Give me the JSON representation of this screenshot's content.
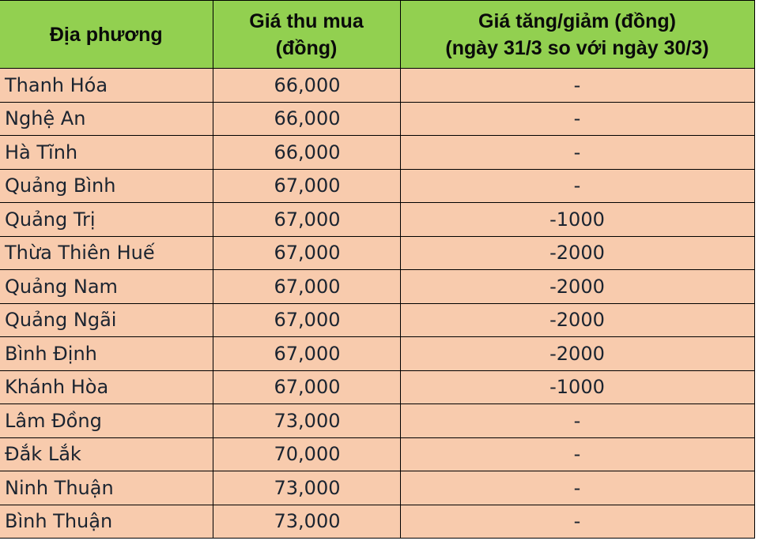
{
  "header": {
    "col1": "Địa phương",
    "col2_line1": "Giá thu mua",
    "col2_line2": "(đồng)",
    "col3_line1": "Giá tăng/giảm (đồng)",
    "col3_line2": "(ngày 31/3 so với ngày 30/3)"
  },
  "colors": {
    "header_bg": "#92d050",
    "row_bg": "#f8cbad"
  },
  "rows": [
    {
      "name": "Thanh Hóa",
      "price": "66,000",
      "change": "-"
    },
    {
      "name": "Nghệ An",
      "price": "66,000",
      "change": "-"
    },
    {
      "name": "Hà Tĩnh",
      "price": "66,000",
      "change": "-"
    },
    {
      "name": "Quảng Bình",
      "price": "67,000",
      "change": "-"
    },
    {
      "name": "Quảng Trị",
      "price": "67,000",
      "change": "-1000"
    },
    {
      "name": "Thừa Thiên Huế",
      "price": "67,000",
      "change": "-2000"
    },
    {
      "name": "Quảng Nam",
      "price": "67,000",
      "change": "-2000"
    },
    {
      "name": "Quảng Ngãi",
      "price": "67,000",
      "change": "-2000"
    },
    {
      "name": "Bình Định",
      "price": "67,000",
      "change": "-2000"
    },
    {
      "name": "Khánh Hòa",
      "price": "67,000",
      "change": "-1000"
    },
    {
      "name": "Lâm Đồng",
      "price": "73,000",
      "change": "-"
    },
    {
      "name": "Đắk Lắk",
      "price": "70,000",
      "change": "-"
    },
    {
      "name": "Ninh Thuận",
      "price": "73,000",
      "change": "-"
    },
    {
      "name": "Bình Thuận",
      "price": "73,000",
      "change": "-"
    }
  ]
}
